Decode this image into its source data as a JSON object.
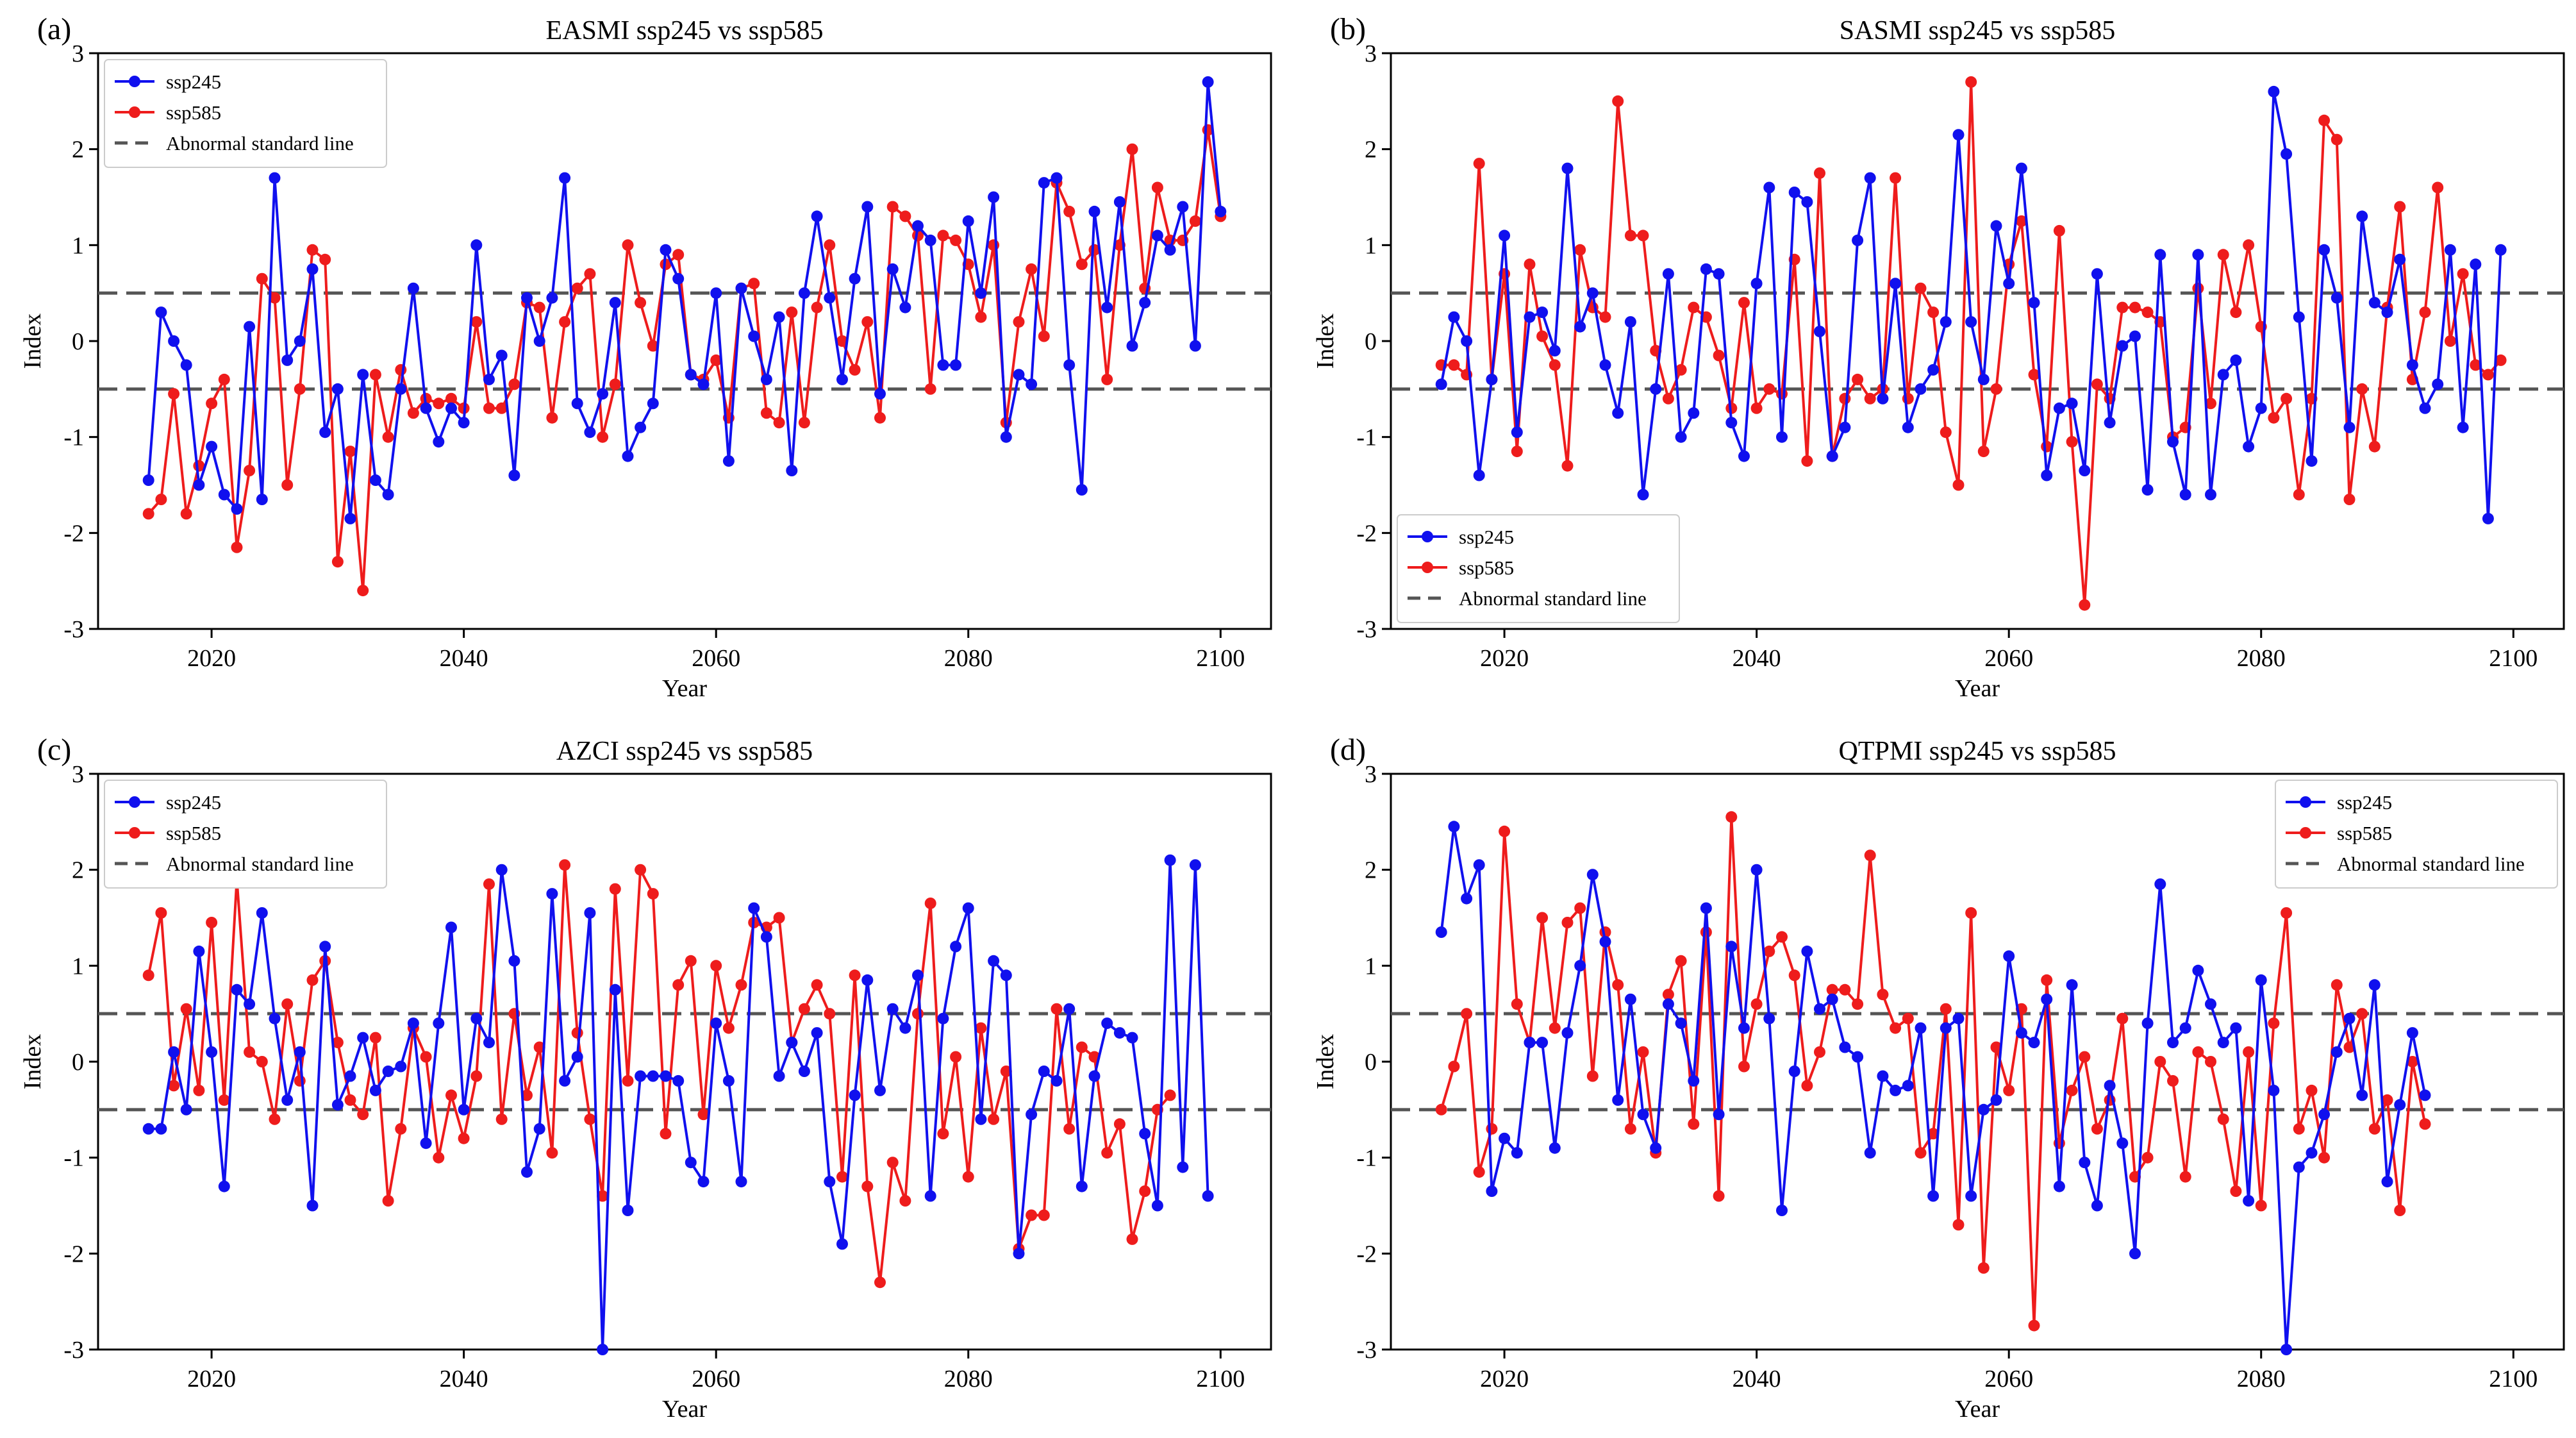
{
  "colors": {
    "ssp245": "#1010ee",
    "ssp585": "#ee1c1c",
    "abnormal": "#555555"
  },
  "chart_data": [
    {
      "type": "line",
      "panel_label": "(a)",
      "title": "EASMI ssp245 vs ssp585",
      "xlabel": "Year",
      "ylabel": "Index",
      "xlim": [
        2011,
        2104
      ],
      "ylim": [
        -3,
        3
      ],
      "xticks": [
        "2020",
        "2040",
        "2060",
        "2080",
        "2100"
      ],
      "yticks": [
        "3",
        "2",
        "1",
        "0",
        "-1",
        "-2",
        "-3"
      ],
      "legend_position": "upper-left",
      "legend": [
        "ssp245",
        "ssp585",
        "Abnormal standard line"
      ],
      "reference_lines": [
        0.5,
        -0.5
      ],
      "x_start": 2015,
      "series": [
        {
          "name": "ssp245",
          "values": [
            -1.45,
            0.3,
            0.0,
            -0.25,
            -1.5,
            -1.1,
            -1.6,
            -1.75,
            0.15,
            -1.65,
            1.7,
            -0.2,
            0.0,
            0.75,
            -0.95,
            -0.5,
            -1.85,
            -0.35,
            -1.45,
            -1.6,
            -0.5,
            0.55,
            -0.7,
            -1.05,
            -0.7,
            -0.85,
            1.0,
            -0.4,
            -0.15,
            -1.4,
            0.45,
            0.0,
            0.45,
            1.7,
            -0.65,
            -0.95,
            -0.55,
            0.4,
            -1.2,
            -0.9,
            -0.65,
            0.95,
            0.65,
            -0.35,
            -0.45,
            0.5,
            -1.25,
            0.55,
            0.05,
            -0.4,
            0.25,
            -1.35,
            0.5,
            1.3,
            0.45,
            -0.4,
            0.65,
            1.4,
            -0.55,
            0.75,
            0.35,
            1.2,
            1.05,
            -0.25,
            -0.25,
            1.25,
            0.5,
            1.5,
            -1.0,
            -0.35,
            -0.45,
            1.65,
            1.7,
            -0.25,
            -1.55,
            1.35,
            0.35,
            1.45,
            -0.05,
            0.4,
            1.1,
            0.95,
            1.4,
            -0.05,
            2.7,
            1.35
          ]
        },
        {
          "name": "ssp585",
          "values": [
            -1.8,
            -1.65,
            -0.55,
            -1.8,
            -1.3,
            -0.65,
            -0.4,
            -2.15,
            -1.35,
            0.65,
            0.45,
            -1.5,
            -0.5,
            0.95,
            0.85,
            -2.3,
            -1.15,
            -2.6,
            -0.35,
            -1.0,
            -0.3,
            -0.75,
            -0.6,
            -0.65,
            -0.6,
            -0.7,
            0.2,
            -0.7,
            -0.7,
            -0.45,
            0.4,
            0.35,
            -0.8,
            0.2,
            0.55,
            0.7,
            -1.0,
            -0.45,
            1.0,
            0.4,
            -0.05,
            0.8,
            0.9,
            -0.35,
            -0.4,
            -0.2,
            -0.8,
            0.55,
            0.6,
            -0.75,
            -0.85,
            0.3,
            -0.85,
            0.35,
            1.0,
            0.0,
            -0.3,
            0.2,
            -0.8,
            1.4,
            1.3,
            1.1,
            -0.5,
            1.1,
            1.05,
            0.8,
            0.25,
            1.0,
            -0.85,
            0.2,
            0.75,
            0.05,
            1.65,
            1.35,
            0.8,
            0.95,
            -0.4,
            1.0,
            2.0,
            0.55,
            1.6,
            1.05,
            1.05,
            1.25,
            2.2,
            1.3
          ]
        }
      ]
    },
    {
      "type": "line",
      "panel_label": "(b)",
      "title": "SASMI ssp245 vs ssp585",
      "xlabel": "Year",
      "ylabel": "Index",
      "xlim": [
        2011,
        2104
      ],
      "ylim": [
        -3,
        3
      ],
      "xticks": [
        "2020",
        "2040",
        "2060",
        "2080",
        "2100"
      ],
      "yticks": [
        "3",
        "2",
        "1",
        "0",
        "-1",
        "-2",
        "-3"
      ],
      "legend_position": "lower-left",
      "legend": [
        "ssp245",
        "ssp585",
        "Abnormal standard line"
      ],
      "reference_lines": [
        0.5,
        -0.5
      ],
      "x_start": 2015,
      "series": [
        {
          "name": "ssp245",
          "values": [
            -0.45,
            0.25,
            0.0,
            -1.4,
            -0.4,
            1.1,
            -0.95,
            0.25,
            0.3,
            -0.1,
            1.8,
            0.15,
            0.5,
            -0.25,
            -0.75,
            0.2,
            -1.6,
            -0.5,
            0.7,
            -1.0,
            -0.75,
            0.75,
            0.7,
            -0.85,
            -1.2,
            0.6,
            1.6,
            -1.0,
            1.55,
            1.45,
            0.1,
            -1.2,
            -0.9,
            1.05,
            1.7,
            -0.6,
            0.6,
            -0.9,
            -0.5,
            -0.3,
            0.2,
            2.15,
            0.2,
            -0.4,
            1.2,
            0.6,
            1.8,
            0.4,
            -1.4,
            -0.7,
            -0.65,
            -1.35,
            0.7,
            -0.85,
            -0.05,
            0.05,
            -1.55,
            0.9,
            -1.05,
            -1.6,
            0.9,
            -1.6,
            -0.35,
            -0.2,
            -1.1,
            -0.7,
            2.6,
            1.95,
            0.25,
            -1.25,
            0.95,
            0.45,
            -0.9,
            1.3,
            0.4,
            0.3,
            0.85,
            -0.25,
            -0.7,
            -0.45,
            0.95,
            -0.9,
            0.8,
            -1.85,
            0.95
          ]
        },
        {
          "name": "ssp585",
          "values": [
            -0.25,
            -0.25,
            -0.35,
            1.85,
            -0.4,
            0.7,
            -1.15,
            0.8,
            0.05,
            -0.25,
            -1.3,
            0.95,
            0.35,
            0.25,
            2.5,
            1.1,
            1.1,
            -0.1,
            -0.6,
            -0.3,
            0.35,
            0.25,
            -0.15,
            -0.7,
            0.4,
            -0.7,
            -0.5,
            -0.55,
            0.85,
            -1.25,
            1.75,
            -1.2,
            -0.6,
            -0.4,
            -0.6,
            -0.5,
            1.7,
            -0.6,
            0.55,
            0.3,
            -0.95,
            -1.5,
            2.7,
            -1.15,
            -0.5,
            0.8,
            1.25,
            -0.35,
            -1.1,
            1.15,
            -1.05,
            -2.75,
            -0.45,
            -0.6,
            0.35,
            0.35,
            0.3,
            0.2,
            -1.0,
            -0.9,
            0.55,
            -0.65,
            0.9,
            0.3,
            1.0,
            0.15,
            -0.8,
            -0.6,
            -1.6,
            -0.6,
            2.3,
            2.1,
            -1.65,
            -0.5,
            -1.1,
            0.35,
            1.4,
            -0.4,
            0.3,
            1.6,
            0.0,
            0.7,
            -0.25,
            -0.35,
            -0.2
          ]
        }
      ]
    },
    {
      "type": "line",
      "panel_label": "(c)",
      "title": "AZCI ssp245 vs ssp585",
      "xlabel": "Year",
      "ylabel": "Index",
      "xlim": [
        2011,
        2104
      ],
      "ylim": [
        -3,
        3
      ],
      "xticks": [
        "2020",
        "2040",
        "2060",
        "2080",
        "2100"
      ],
      "yticks": [
        "3",
        "2",
        "1",
        "0",
        "-1",
        "-2",
        "-3"
      ],
      "legend_position": "upper-left",
      "legend": [
        "ssp245",
        "ssp585",
        "Abnormal standard line"
      ],
      "reference_lines": [
        0.5,
        -0.5
      ],
      "x_start": 2015,
      "series": [
        {
          "name": "ssp245",
          "values": [
            -0.7,
            -0.7,
            0.1,
            -0.5,
            1.15,
            0.1,
            -1.3,
            0.75,
            0.6,
            1.55,
            0.45,
            -0.4,
            0.1,
            -1.5,
            1.2,
            -0.45,
            -0.15,
            0.25,
            -0.3,
            -0.1,
            -0.05,
            0.4,
            -0.85,
            0.4,
            1.4,
            -0.5,
            0.45,
            0.2,
            2.0,
            1.05,
            -1.15,
            -0.7,
            1.75,
            -0.2,
            0.05,
            1.55,
            -3.0,
            0.75,
            -1.55,
            -0.15,
            -0.15,
            -0.15,
            -0.2,
            -1.05,
            -1.25,
            0.4,
            -0.2,
            -1.25,
            1.6,
            1.3,
            -0.15,
            0.2,
            -0.1,
            0.3,
            -1.25,
            -1.9,
            -0.35,
            0.85,
            -0.3,
            0.55,
            0.35,
            0.9,
            -1.4,
            0.45,
            1.2,
            1.6,
            -0.6,
            1.05,
            0.9,
            -2.0,
            -0.55,
            -0.1,
            -0.2,
            0.55,
            -1.3,
            -0.15,
            0.4,
            0.3,
            0.25,
            -0.75,
            -1.5,
            2.1,
            -1.1,
            2.05,
            -1.4
          ]
        },
        {
          "name": "ssp585",
          "values": [
            0.9,
            1.55,
            -0.25,
            0.55,
            -0.3,
            1.45,
            -0.4,
            1.9,
            0.1,
            0.0,
            -0.6,
            0.6,
            -0.2,
            0.85,
            1.05,
            0.2,
            -0.4,
            -0.55,
            0.25,
            -1.45,
            -0.7,
            0.35,
            0.05,
            -1.0,
            -0.35,
            -0.8,
            -0.15,
            1.85,
            -0.6,
            0.5,
            -0.35,
            0.15,
            -0.95,
            2.05,
            0.3,
            -0.6,
            -1.4,
            1.8,
            -0.2,
            2.0,
            1.75,
            -0.75,
            0.8,
            1.05,
            -0.55,
            1.0,
            0.35,
            0.8,
            1.45,
            1.4,
            1.5,
            0.2,
            0.55,
            0.8,
            0.5,
            -1.2,
            0.9,
            -1.3,
            -2.3,
            -1.05,
            -1.45,
            0.5,
            1.65,
            -0.75,
            0.05,
            -1.2,
            0.35,
            -0.6,
            -0.1,
            -1.95,
            -1.6,
            -1.6,
            0.55,
            -0.7,
            0.15,
            0.05,
            -0.95,
            -0.65,
            -1.85,
            -1.35,
            -0.5,
            -0.35
          ]
        }
      ]
    },
    {
      "type": "line",
      "panel_label": "(d)",
      "title": "QTPMI ssp245 vs ssp585",
      "xlabel": "Year",
      "ylabel": "Index",
      "xlim": [
        2011,
        2104
      ],
      "ylim": [
        -3,
        3
      ],
      "xticks": [
        "2020",
        "2040",
        "2060",
        "2080",
        "2100"
      ],
      "yticks": [
        "3",
        "2",
        "1",
        "0",
        "-1",
        "-2",
        "-3"
      ],
      "legend_position": "upper-right",
      "legend": [
        "ssp245",
        "ssp585",
        "Abnormal standard line"
      ],
      "reference_lines": [
        0.5,
        -0.5
      ],
      "x_start": 2015,
      "series": [
        {
          "name": "ssp245",
          "values": [
            1.35,
            2.45,
            1.7,
            2.05,
            -1.35,
            -0.8,
            -0.95,
            0.2,
            0.2,
            -0.9,
            0.3,
            1.0,
            1.95,
            1.25,
            -0.4,
            0.65,
            -0.55,
            -0.9,
            0.6,
            0.4,
            -0.2,
            1.6,
            -0.55,
            1.2,
            0.35,
            2.0,
            0.45,
            -1.55,
            -0.1,
            1.15,
            0.55,
            0.65,
            0.15,
            0.05,
            -0.95,
            -0.15,
            -0.3,
            -0.25,
            0.35,
            -1.4,
            0.35,
            0.45,
            -1.4,
            -0.5,
            -0.4,
            1.1,
            0.3,
            0.2,
            0.65,
            -1.3,
            0.8,
            -1.05,
            -1.5,
            -0.25,
            -0.85,
            -2.0,
            0.4,
            1.85,
            0.2,
            0.35,
            0.95,
            0.6,
            0.2,
            0.35,
            -1.45,
            0.85,
            -0.3,
            -3.0,
            -1.1,
            -0.95,
            -0.55,
            0.1,
            0.45,
            -0.35,
            0.8,
            -1.25,
            -0.45,
            0.3,
            -0.35
          ]
        },
        {
          "name": "ssp585",
          "values": [
            -0.5,
            -0.05,
            0.5,
            -1.15,
            -0.7,
            2.4,
            0.6,
            0.2,
            1.5,
            0.35,
            1.45,
            1.6,
            -0.15,
            1.35,
            0.8,
            -0.7,
            0.1,
            -0.95,
            0.7,
            1.05,
            -0.65,
            1.35,
            -1.4,
            2.55,
            -0.05,
            0.6,
            1.15,
            1.3,
            0.9,
            -0.25,
            0.1,
            0.75,
            0.75,
            0.6,
            2.15,
            0.7,
            0.35,
            0.45,
            -0.95,
            -0.75,
            0.55,
            -1.7,
            1.55,
            -2.15,
            0.15,
            -0.3,
            0.55,
            -2.75,
            0.85,
            -0.85,
            -0.3,
            0.05,
            -0.7,
            -0.4,
            0.45,
            -1.2,
            -1.0,
            0.0,
            -0.2,
            -1.2,
            0.1,
            0.0,
            -0.6,
            -1.35,
            0.1,
            -1.5,
            0.4,
            1.55,
            -0.7,
            -0.3,
            -1.0,
            0.8,
            0.15,
            0.5,
            -0.7,
            -0.4,
            -1.55,
            0.0,
            -0.65
          ]
        }
      ]
    }
  ]
}
